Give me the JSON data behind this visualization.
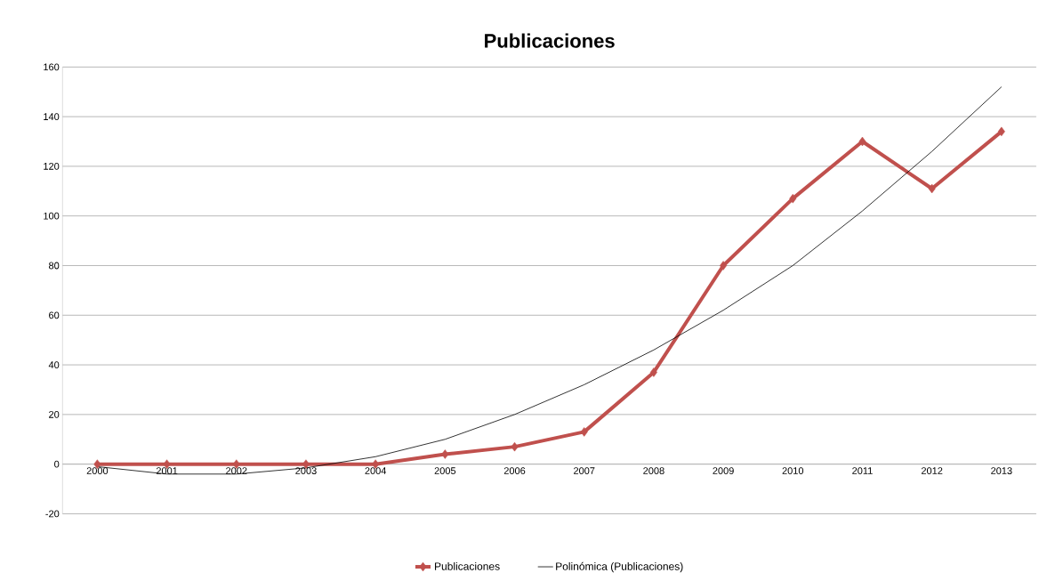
{
  "chart_data": {
    "type": "line",
    "title": "Publicaciones",
    "categories": [
      "2000",
      "2001",
      "2002",
      "2003",
      "2004",
      "2005",
      "2006",
      "2007",
      "2008",
      "2009",
      "2010",
      "2011",
      "2012",
      "2013"
    ],
    "series": [
      {
        "name": "Publicaciones",
        "color": "#c0504d",
        "marker": "diamond",
        "line_style": "solid",
        "values": [
          0,
          0,
          0,
          0,
          0,
          4,
          7,
          13,
          37,
          80,
          107,
          130,
          111,
          134
        ]
      },
      {
        "name": "Polinómica (Publicaciones)",
        "type": "line",
        "color": "#000000",
        "marker": "none",
        "line_style": "solid",
        "values": [
          -1,
          -4,
          -4,
          -1.5,
          3,
          10,
          20,
          32,
          46,
          62,
          80,
          102,
          126,
          152
        ]
      }
    ],
    "ylim": [
      -20,
      160
    ],
    "yticks": [
      -20,
      0,
      20,
      40,
      60,
      80,
      100,
      120,
      140,
      160
    ],
    "grid": "y",
    "legend": "bottom"
  }
}
